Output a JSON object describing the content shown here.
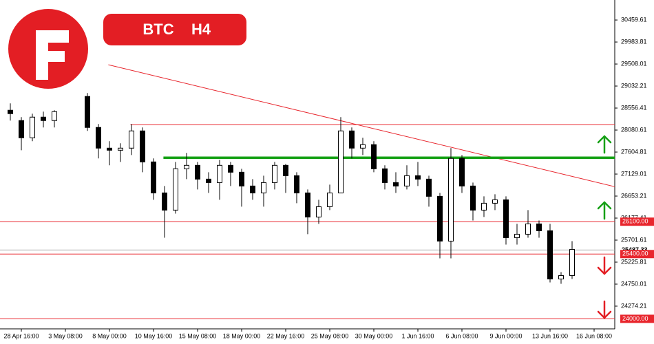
{
  "chart_data": {
    "type": "candlestick",
    "symbol": "BTC",
    "timeframe": "H4",
    "categories": [
      null,
      "28 Apr 16:00",
      null,
      null,
      null,
      "3 May 08:00",
      null,
      null,
      null,
      "8 May 00:00",
      null,
      null,
      null,
      "10 May 16:00",
      null,
      null,
      null,
      "15 May 08:00",
      null,
      null,
      null,
      "18 May 00:00",
      null,
      null,
      null,
      "22 May 16:00",
      null,
      null,
      null,
      "25 May 08:00",
      null,
      null,
      null,
      "30 May 00:00",
      null,
      null,
      null,
      "1 Jun 16:00",
      null,
      null,
      null,
      "6 Jun 08:00",
      null,
      null,
      null,
      "9 Jun 00:00",
      null,
      null,
      null,
      "13 Jun 16:00",
      null,
      null,
      null,
      "16 Jun 08:00"
    ],
    "open": [
      28509,
      28286,
      27913,
      28360,
      28286,
      null,
      null,
      28807,
      28137,
      27690,
      27645,
      27690,
      28062,
      27392,
      26722,
      26350,
      27243,
      27318,
      27020,
      26945,
      27318,
      27169,
      26871,
      26722,
      26945,
      27318,
      27094,
      26722,
      26201,
      26424,
      26722,
      28062,
      27690,
      27765,
      27243,
      26945,
      26871,
      27094,
      27020,
      26648,
      25680,
      27467,
      26871,
      26350,
      26499,
      26573,
      25754,
      25829,
      26052,
      25904,
      24861,
      24935,
      null,
      null
    ],
    "high": [
      28658,
      28360,
      28435,
      28479,
      28509,
      null,
      null,
      28881,
      28211,
      27839,
      27794,
      28211,
      28137,
      27467,
      26871,
      27392,
      27586,
      27392,
      27169,
      27437,
      27392,
      27243,
      27020,
      27094,
      27392,
      27348,
      27169,
      26797,
      26573,
      26901,
      28360,
      28137,
      27913,
      27839,
      27318,
      27169,
      27318,
      27392,
      27094,
      26722,
      27690,
      27541,
      26945,
      26648,
      26692,
      26648,
      26052,
      26350,
      26126,
      26052,
      25010,
      25680,
      null,
      null
    ],
    "low": [
      28286,
      27645,
      27839,
      28137,
      28137,
      null,
      null,
      28062,
      27467,
      27318,
      27392,
      27541,
      27169,
      26573,
      25754,
      26275,
      27020,
      26797,
      26722,
      26573,
      26871,
      26424,
      26573,
      26424,
      26797,
      26722,
      26499,
      25829,
      26052,
      26350,
      26722,
      27467,
      27541,
      27169,
      26797,
      26722,
      26797,
      26871,
      26424,
      25307,
      25307,
      26722,
      26126,
      26201,
      26350,
      25605,
      25605,
      25754,
      25754,
      24787,
      24757,
      24861,
      null,
      null
    ],
    "close": [
      28435,
      27913,
      28360,
      28286,
      28479,
      null,
      null,
      28137,
      27690,
      27645,
      27690,
      28062,
      27392,
      26722,
      26350,
      27243,
      27318,
      27020,
      26945,
      27318,
      27169,
      26871,
      26722,
      26945,
      27318,
      27094,
      26722,
      26201,
      26424,
      26722,
      28062,
      27690,
      27765,
      27243,
      26945,
      26871,
      27094,
      27020,
      26648,
      25680,
      27467,
      26871,
      26350,
      26499,
      26573,
      25754,
      25829,
      26052,
      25904,
      24861,
      24935,
      25501,
      null,
      null
    ],
    "ylim": [
      23783,
      30892
    ],
    "yticks": [
      30459.61,
      29983.81,
      29508.01,
      29032.21,
      28556.41,
      28080.61,
      27604.81,
      27129.01,
      26653.21,
      26177.41,
      25701.61,
      25225.81,
      24750.01,
      24274.21
    ],
    "last_price": 25487.33,
    "levels": [
      {
        "value": 26100,
        "label": "26100.00"
      },
      {
        "value": 25400,
        "label": "25400.00"
      },
      {
        "value": 24000,
        "label": "24000.00"
      }
    ],
    "resistance": {
      "x": [
        10.9,
        54.9
      ],
      "y": [
        28196,
        28196
      ],
      "color": "#e8262d"
    },
    "support_zone": {
      "x": [
        13.9,
        54.9
      ],
      "y": [
        27482,
        27482
      ],
      "color": "#15a015"
    },
    "trend_line": {
      "x": [
        8.9,
        54.9
      ],
      "y": [
        29492,
        26857
      ],
      "color": "#e8262d"
    },
    "up_color": "#ffffff",
    "down_color": "#000000",
    "level_color": "#e8262d"
  }
}
